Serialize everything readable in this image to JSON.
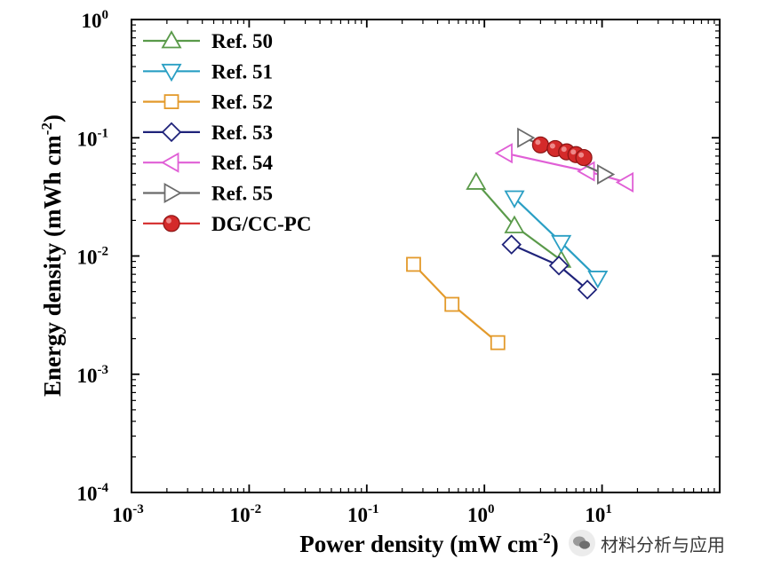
{
  "chart_data": {
    "type": "scatter",
    "title": "",
    "xlabel": "Power density (mW cm",
    "xlabel_sup": "-2",
    "xlabel_end": ")",
    "ylabel": "Energy density (mWh cm",
    "ylabel_sup": "-2",
    "ylabel_end": ")",
    "xscale": "log",
    "yscale": "log",
    "xlim": [
      0.001,
      100
    ],
    "ylim": [
      0.0001,
      1
    ],
    "x_ticks": [
      {
        "value": 0.001,
        "base": "10",
        "exp": "-3"
      },
      {
        "value": 0.01,
        "base": "10",
        "exp": "-2"
      },
      {
        "value": 0.1,
        "base": "10",
        "exp": "-1"
      },
      {
        "value": 1,
        "base": "10",
        "exp": "0"
      },
      {
        "value": 10,
        "base": "10",
        "exp": "1"
      }
    ],
    "y_ticks": [
      {
        "value": 0.0001,
        "base": "10",
        "exp": "-4"
      },
      {
        "value": 0.001,
        "base": "10",
        "exp": "-3"
      },
      {
        "value": 0.01,
        "base": "10",
        "exp": "-2"
      },
      {
        "value": 0.1,
        "base": "10",
        "exp": "-1"
      },
      {
        "value": 1,
        "base": "10",
        "exp": "0"
      }
    ],
    "legend_position": "top-left",
    "series": [
      {
        "name": "Ref. 50",
        "marker": "triangle-up",
        "color": "#5a9a4a",
        "points": [
          [
            0.85,
            0.042
          ],
          [
            1.8,
            0.018
          ],
          [
            4.5,
            0.0092
          ]
        ]
      },
      {
        "name": "Ref. 51",
        "marker": "triangle-down",
        "color": "#2a9fc4",
        "points": [
          [
            1.8,
            0.031
          ],
          [
            4.5,
            0.013
          ],
          [
            9.2,
            0.0065
          ]
        ]
      },
      {
        "name": "Ref. 52",
        "marker": "square",
        "color": "#e39a2b",
        "points": [
          [
            0.25,
            0.0085
          ],
          [
            0.53,
            0.0039
          ],
          [
            1.3,
            0.00185
          ]
        ]
      },
      {
        "name": "Ref. 53",
        "marker": "diamond",
        "color": "#1f237a",
        "points": [
          [
            1.7,
            0.0125
          ],
          [
            4.3,
            0.0083
          ],
          [
            7.5,
            0.0052
          ]
        ]
      },
      {
        "name": "Ref. 54",
        "marker": "triangle-left",
        "color": "#e05fd6",
        "points": [
          [
            1.5,
            0.074
          ],
          [
            7.5,
            0.052
          ],
          [
            16,
            0.042
          ]
        ]
      },
      {
        "name": "Ref. 55",
        "marker": "triangle-right",
        "color": "#6b6b6b",
        "points": [
          [
            2.2,
            0.1
          ],
          [
            10.5,
            0.049
          ]
        ]
      },
      {
        "name": "DG/CC-PC",
        "marker": "circle",
        "color": "#d42a2a",
        "points": [
          [
            3.0,
            0.087
          ],
          [
            4.0,
            0.081
          ],
          [
            5.0,
            0.076
          ],
          [
            6.0,
            0.072
          ],
          [
            7.0,
            0.068
          ]
        ]
      }
    ]
  },
  "watermark": {
    "text": "材料分析与应用",
    "icon": "wechat-icon"
  }
}
